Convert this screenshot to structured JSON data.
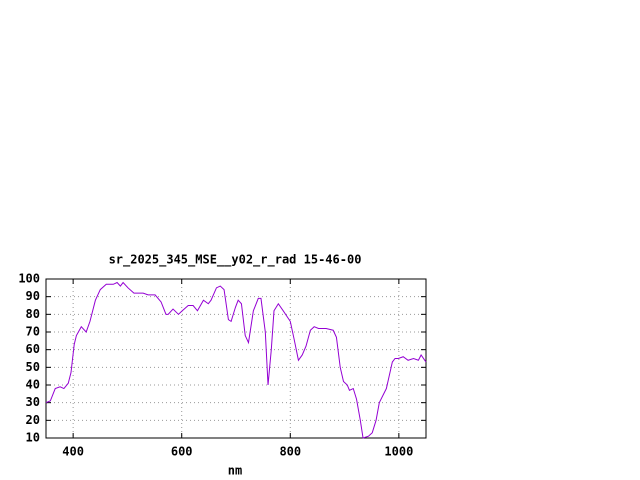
{
  "chart_data": {
    "type": "line",
    "title": "sr_2025_345_MSE__y02_r_rad 15-46-00",
    "x_label": "nm",
    "x": [
      350,
      358,
      367,
      376,
      383,
      391,
      396,
      402,
      406,
      415,
      424,
      431,
      441,
      450,
      461,
      474,
      481,
      487,
      492,
      501,
      512,
      529,
      538,
      551,
      562,
      571,
      575,
      584,
      594,
      601,
      612,
      621,
      629,
      640,
      649,
      654,
      664,
      671,
      678,
      686,
      691,
      699,
      704,
      710,
      717,
      723,
      732,
      741,
      746,
      754,
      759,
      765,
      770,
      778,
      787,
      800,
      807,
      815,
      822,
      829,
      837,
      844,
      852,
      866,
      879,
      885,
      892,
      898,
      905,
      909,
      916,
      922,
      929,
      934,
      944,
      951,
      958,
      964,
      977,
      988,
      993,
      999,
      1008,
      1017,
      1027,
      1036,
      1041,
      1050
    ],
    "values": [
      30,
      31,
      38,
      39,
      38,
      41,
      47,
      63,
      68,
      73,
      70,
      76,
      88,
      94,
      97,
      97,
      98,
      96,
      98,
      95,
      92,
      92,
      91,
      91,
      87,
      80,
      80,
      83,
      80,
      82,
      85,
      85,
      82,
      88,
      86,
      88,
      95,
      96,
      94,
      77,
      76,
      84,
      88,
      86,
      68,
      64,
      82,
      89,
      89,
      70,
      40,
      60,
      82,
      86,
      82,
      76,
      66,
      54,
      57,
      62,
      71,
      73,
      72,
      72,
      71,
      67,
      50,
      42,
      40,
      37,
      38,
      32,
      20,
      10,
      11,
      13,
      20,
      30,
      38,
      53,
      55,
      55,
      56,
      54,
      55,
      54,
      57,
      53
    ],
    "color": "#9400d3",
    "xlim": [
      350,
      1050
    ],
    "xticks": [
      400,
      600,
      800,
      1000
    ],
    "ylim": [
      10,
      100
    ],
    "yticks": [
      10,
      20,
      30,
      40,
      50,
      60,
      70,
      80,
      90,
      100
    ],
    "grid": true
  }
}
